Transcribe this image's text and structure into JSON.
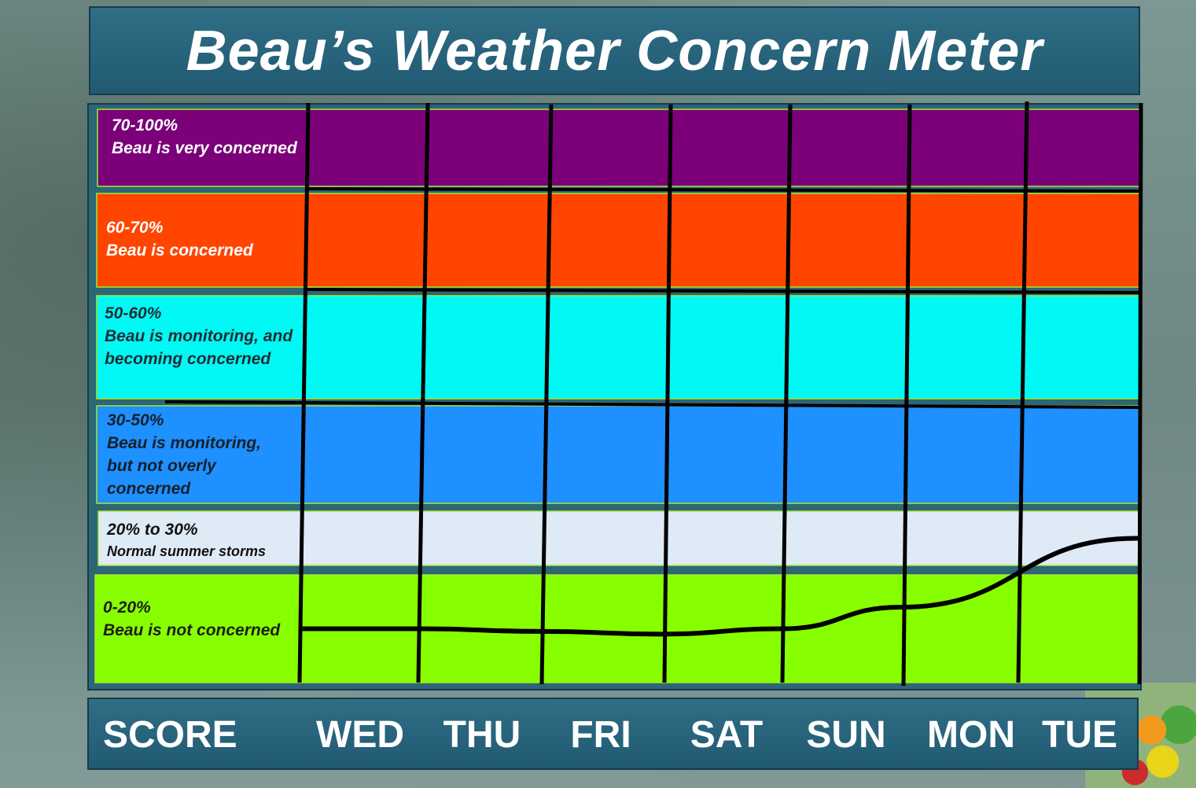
{
  "title": "Beau’s Weather Concern Meter",
  "colors": {
    "very_concerned": "#7b0079",
    "concerned": "#ff4500",
    "monitoring_becoming": "#00f8f5",
    "monitoring_not_overly": "#1e90ff",
    "normal": "#dfeaf7",
    "not_concerned": "#88ff00",
    "panel": "#2a6a82",
    "line": "#000000"
  },
  "chart_data": {
    "type": "line",
    "title": "Beau’s Weather Concern Meter",
    "xlabel": "SCORE",
    "ylabel": "",
    "categories": [
      "WED",
      "THU",
      "FRI",
      "SAT",
      "SUN",
      "MON",
      "TUE"
    ],
    "ylim": [
      0,
      100
    ],
    "bands": [
      {
        "range": "70-100%",
        "label": "Beau is very concerned",
        "from": 70,
        "to": 100,
        "color": "#7b0079"
      },
      {
        "range": "60-70%",
        "label": "Beau is concerned",
        "from": 60,
        "to": 70,
        "color": "#ff4500"
      },
      {
        "range": "50-60%",
        "label": "Beau is monitoring, and becoming concerned",
        "from": 50,
        "to": 60,
        "color": "#00f8f5"
      },
      {
        "range": "30-50%",
        "label": "Beau is monitoring, but  not overly  concerned",
        "from": 30,
        "to": 50,
        "color": "#1e90ff"
      },
      {
        "range": "20% to 30%",
        "label": "Normal summer storms",
        "from": 20,
        "to": 30,
        "color": "#dfeaf7"
      },
      {
        "range": "0-20%",
        "label": "Beau is not concerned",
        "from": 0,
        "to": 20,
        "color": "#88ff00"
      }
    ],
    "series": [
      {
        "values": [
          10,
          10,
          9.5,
          9,
          10,
          14,
          25
        ]
      }
    ]
  }
}
